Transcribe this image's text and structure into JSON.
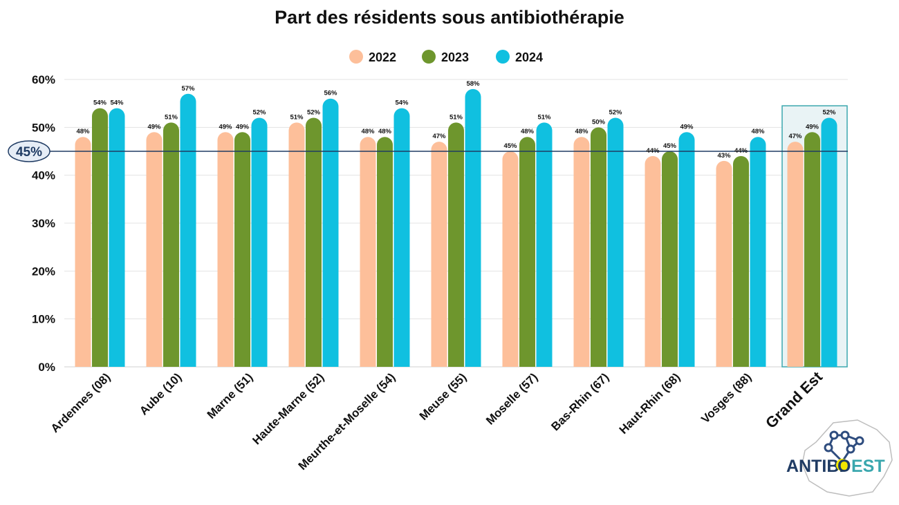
{
  "chart_data": {
    "type": "bar",
    "title": "Part des résidents sous antibiothérapie",
    "categories": [
      "Ardennes (08)",
      "Aube (10)",
      "Marne (51)",
      "Haute-Marne (52)",
      "Meurthe-et-Moselle (54)",
      "Meuse (55)",
      "Moselle (57)",
      "Bas-Rhin (67)",
      "Haut-Rhin (68)",
      "Vosges (88)",
      "Grand Est"
    ],
    "series": [
      {
        "name": "2022",
        "color": "#FDBF9A",
        "values": [
          48,
          49,
          49,
          51,
          48,
          47,
          45,
          48,
          44,
          43,
          47
        ]
      },
      {
        "name": "2023",
        "color": "#6E962D",
        "values": [
          54,
          51,
          49,
          52,
          48,
          51,
          48,
          50,
          45,
          44,
          49
        ]
      },
      {
        "name": "2024",
        "color": "#10C0E0",
        "values": [
          54,
          57,
          52,
          56,
          54,
          58,
          51,
          52,
          49,
          48,
          52
        ]
      }
    ],
    "value_suffix": "%",
    "ylim": [
      0,
      60
    ],
    "yticks": [
      "0%",
      "10%",
      "20%",
      "30%",
      "40%",
      "50%",
      "60%"
    ],
    "grid": true,
    "legend_position": "top-center",
    "reference_line": {
      "value": 45,
      "label": "45%",
      "color": "#1F3B63"
    },
    "highlight_category": {
      "name": "Grand Est",
      "color": "#3AA7AE"
    }
  },
  "logo": {
    "text_left": "ANTIBI",
    "text_mid": "O",
    "text_right": "EST"
  }
}
